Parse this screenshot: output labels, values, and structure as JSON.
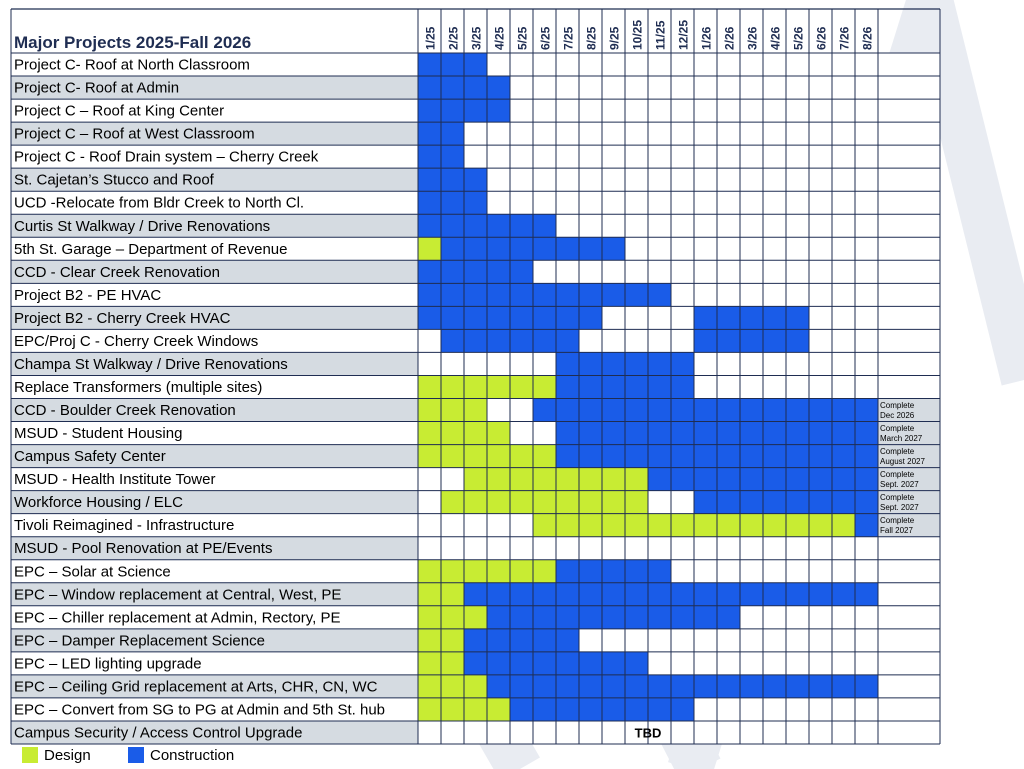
{
  "chart_data": {
    "type": "gantt",
    "title": "Major Projects 2025-Fall 2026",
    "months": [
      "1/25",
      "2/25",
      "3/25",
      "4/25",
      "5/25",
      "6/25",
      "7/25",
      "8/25",
      "9/25",
      "10/25",
      "11/25",
      "12/25",
      "1/26",
      "2/26",
      "3/26",
      "4/26",
      "5/26",
      "6/26",
      "7/26",
      "8/26"
    ],
    "colors": {
      "design": "#c8ec33",
      "construction": "#1a5ce8",
      "label_bg_alt": "#d5dbe1",
      "grid": "#1f2d52",
      "title": "#1f2d52"
    },
    "projects": [
      {
        "name": "Project C- Roof at North Classroom",
        "cells": "CCC"
      },
      {
        "name": "Project C- Roof at Admin",
        "cells": "CCCC"
      },
      {
        "name": "Project C – Roof at King Center",
        "cells": "CCCC"
      },
      {
        "name": "Project C – Roof at West Classroom",
        "cells": "CC"
      },
      {
        "name": "Project C - Roof Drain system – Cherry Creek",
        "cells": "CC"
      },
      {
        "name": "St. Cajetan’s Stucco and Roof",
        "cells": "CCC"
      },
      {
        "name": "UCD -Relocate from Bldr Creek to North Cl.",
        "cells": "CCC"
      },
      {
        "name": "Curtis St Walkway / Drive Renovations",
        "cells": "CCCCCC"
      },
      {
        "name": "5th St. Garage – Department of Revenue",
        "cells": "DCCCCCCCC"
      },
      {
        "name": "CCD - Clear Creek Renovation",
        "cells": "CCCCC"
      },
      {
        "name": "Project B2 - PE HVAC",
        "cells": "CCCCCCCCCCC"
      },
      {
        "name": "Project B2 - Cherry Creek HVAC",
        "cells": "CCCCCCCC....CCCCC"
      },
      {
        "name": "EPC/Proj C - Cherry Creek Windows",
        "cells": ".CCCCCC.....CCCCC"
      },
      {
        "name": "Champa St Walkway / Drive Renovations",
        "cells": "......CCCCCC"
      },
      {
        "name": "Replace Transformers (multiple sites)",
        "cells": "DDDDDDCCCCCC"
      },
      {
        "name": "CCD - Boulder Creek Renovation",
        "cells": "DDD..CCCCCCCCCCCCCCC",
        "note": "Complete Dec 2026"
      },
      {
        "name": "MSUD  - Student Housing",
        "cells": "DDDD..CCCCCCCCCCCCCC",
        "note": "Complete March 2027"
      },
      {
        "name": "Campus Safety Center",
        "cells": "DDDDDDCCCCCCCCCCCCCC",
        "note": "Complete August 2027"
      },
      {
        "name": "MSUD - Health Institute Tower",
        "cells": "..DDDDDDDDCCCCCCCCCC",
        "note": "Complete Sept. 2027"
      },
      {
        "name": "Workforce Housing / ELC",
        "cells": ".DDDDDDDDD..CCCCCCCC",
        "note": "Complete Sept. 2027"
      },
      {
        "name": "Tivoli Reimagined - Infrastructure",
        "cells": ".....DDDDDDDDDDDDDDC",
        "note": "Complete Fall 2027"
      },
      {
        "name": "MSUD - Pool Renovation at PE/Events",
        "cells": ""
      },
      {
        "name": "EPC – Solar at Science",
        "cells": "DDDDDDCCCCC"
      },
      {
        "name": "EPC – Window replacement at Central, West, PE",
        "cells": "DDCCCCCCCCCCCCCCCCCC"
      },
      {
        "name": "EPC – Chiller replacement at Admin, Rectory, PE",
        "cells": "DDDCCCCCCCCCCC"
      },
      {
        "name": "EPC – Damper Replacement Science",
        "cells": "DDCCCCC"
      },
      {
        "name": "EPC – LED lighting upgrade",
        "cells": "DDCCCCCCCC"
      },
      {
        "name": "EPC – Ceiling Grid replacement at Arts, CHR, CN, WC",
        "cells": "DDDCCCCCCCCCCCCCCCCC"
      },
      {
        "name": "EPC – Convert from SG to PG at Admin and 5th St. hub",
        "cells": "DDDDCCCCCCCC"
      },
      {
        "name": "Campus Security / Access Control Upgrade",
        "cells": "",
        "center_text": "TBD"
      }
    ],
    "legend": [
      {
        "label": "Design",
        "color": "#c8ec33"
      },
      {
        "label": "Construction",
        "color": "#1a5ce8"
      }
    ]
  }
}
